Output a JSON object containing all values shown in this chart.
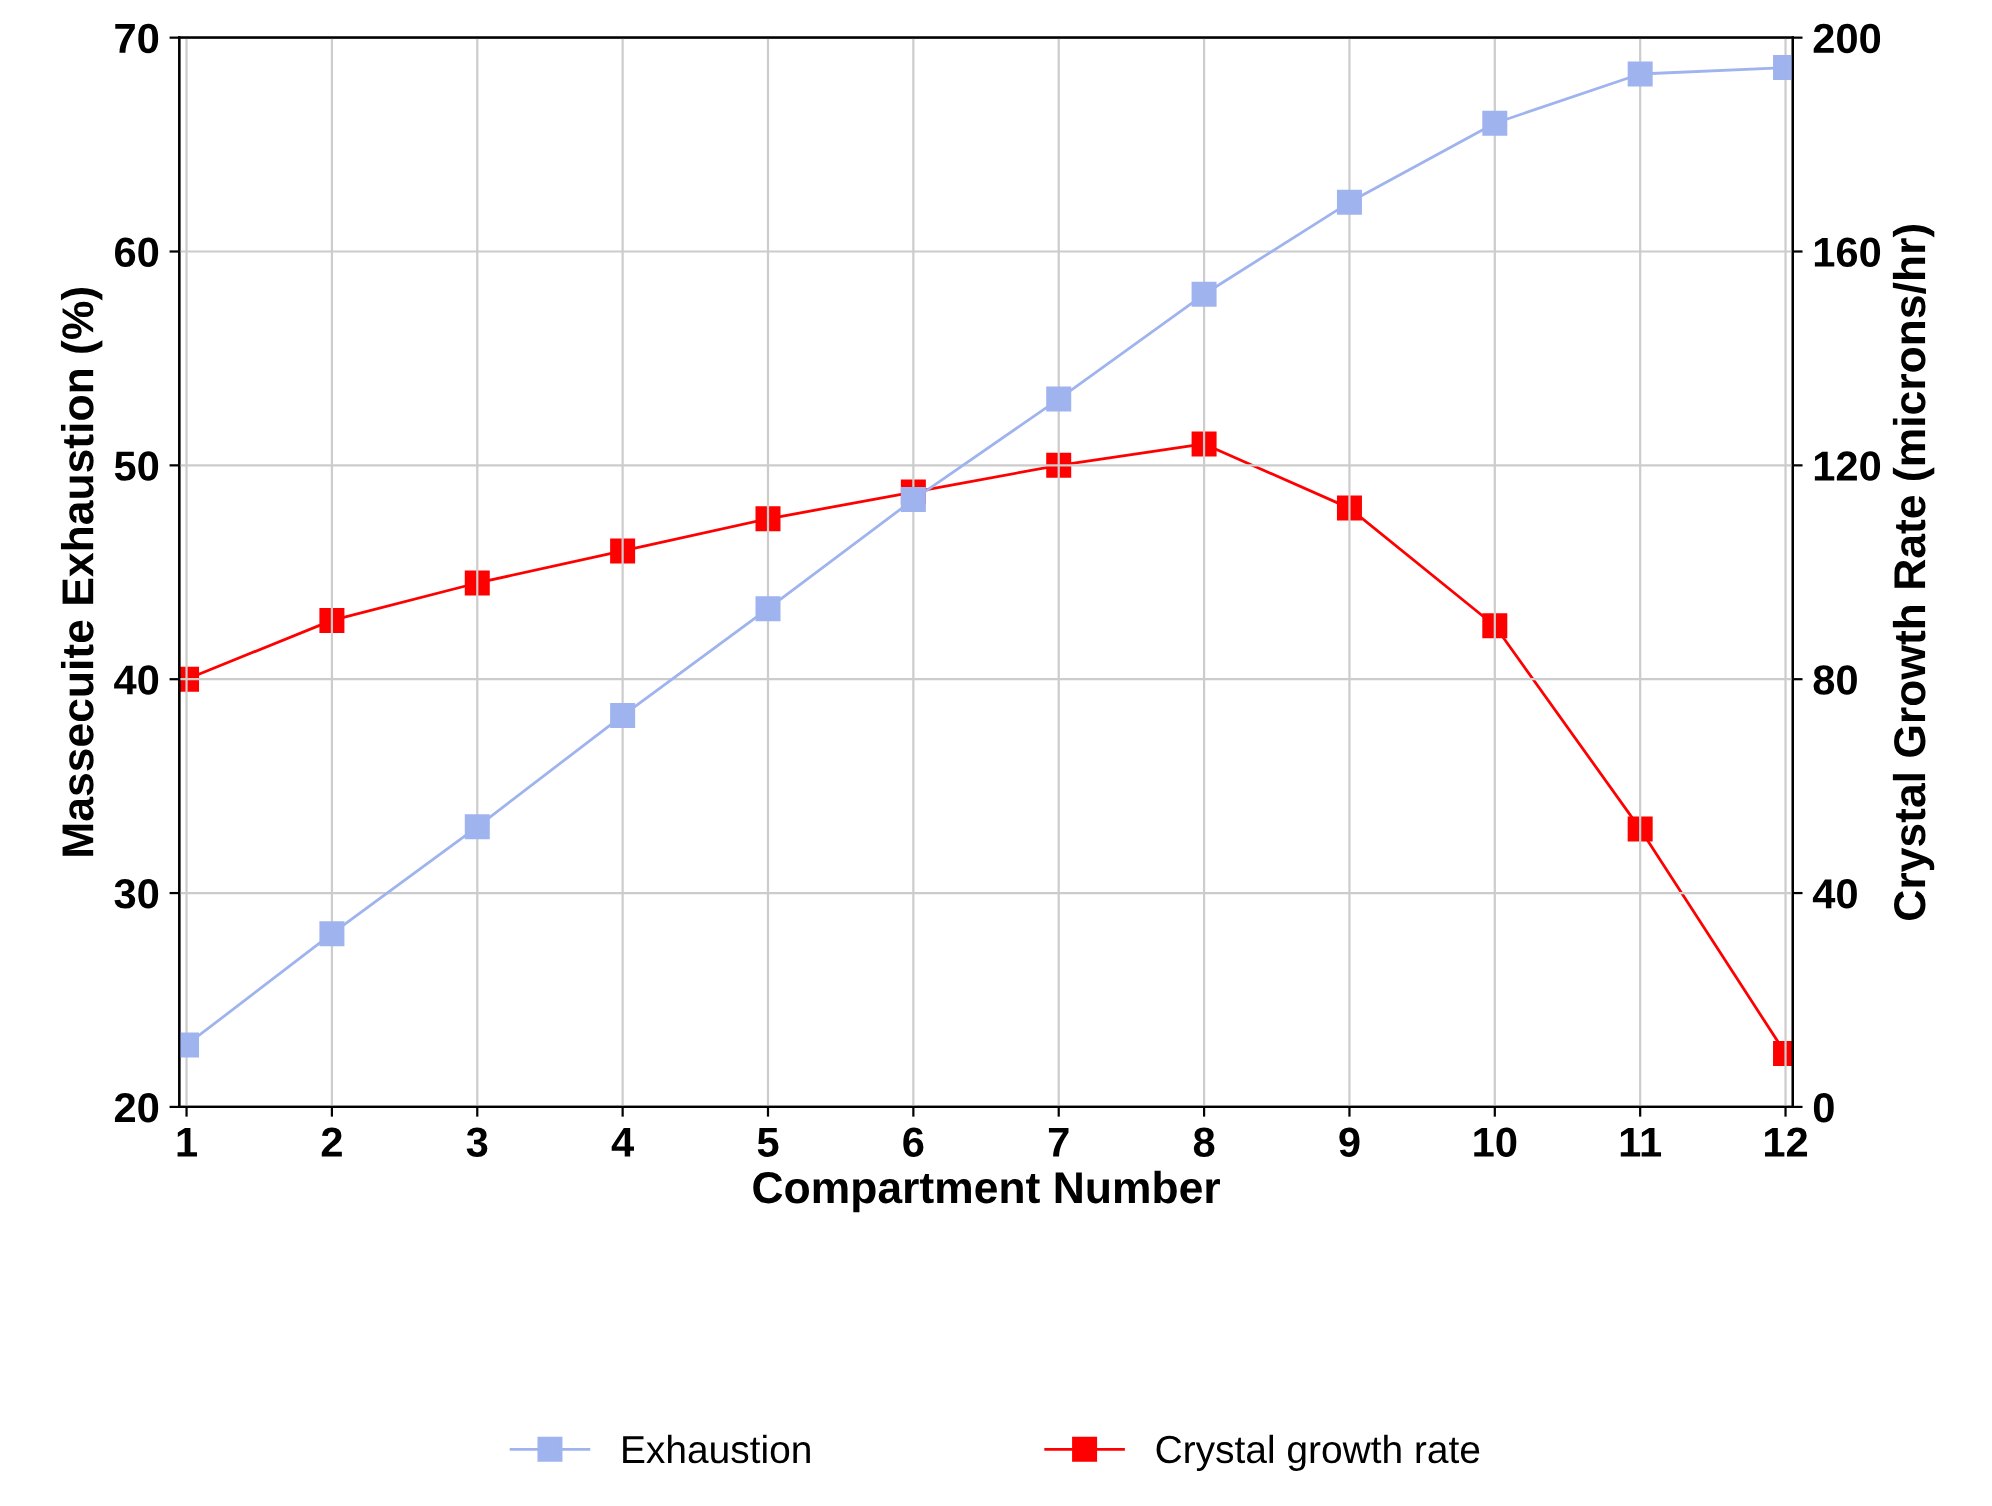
{
  "chart_data": {
    "type": "line",
    "xlabel": "Compartment Number",
    "ylabel": "Massecuite Exhaustion (%)",
    "y2label": "Crystal Growth Rate (microns/hr)",
    "categories": [
      "1",
      "2",
      "3",
      "4",
      "5",
      "6",
      "7",
      "8",
      "9",
      "10",
      "11",
      "12"
    ],
    "series": [
      {
        "name": "Exhaustion",
        "color": "#9fb3ef",
        "values": [
          22.9,
          28.1,
          33.1,
          38.3,
          43.3,
          48.4,
          53.1,
          58.0,
          62.3,
          66.0,
          68.3,
          68.6
        ]
      },
      {
        "name": "Crystal growth rate",
        "color": "#ff0000",
        "axis": "y2",
        "values": [
          80,
          91,
          98,
          104,
          110,
          115,
          120,
          124,
          112,
          90,
          52,
          10
        ]
      }
    ],
    "ylim": [
      20,
      70
    ],
    "yticks": [
      20,
      30,
      40,
      50,
      60,
      70
    ],
    "y2lim": [
      0,
      200
    ],
    "y2ticks": [
      0,
      40,
      80,
      120,
      160,
      200
    ],
    "grid": true,
    "legend": "bottom",
    "marker": "square",
    "line_style": "solid"
  }
}
